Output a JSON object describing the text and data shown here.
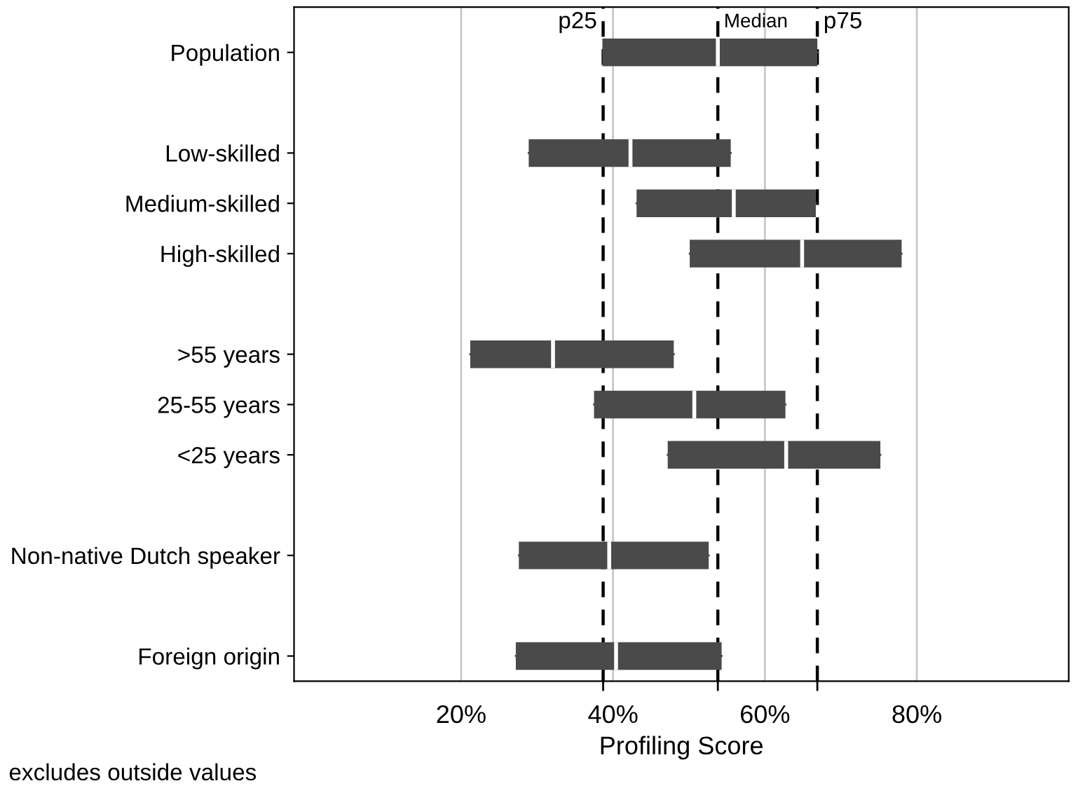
{
  "chart_data": {
    "type": "box",
    "orientation": "horizontal",
    "xlabel": "Profiling Score",
    "categories": [
      "Population",
      null,
      "Low-skilled",
      "Medium-skilled",
      "High-skilled",
      null,
      ">55 years",
      "25-55 years",
      "<25 years",
      null,
      "Non-native Dutch speaker",
      null,
      "Foreign origin"
    ],
    "color": "#4a4a4a",
    "boxes": [
      {
        "q1": 38.6,
        "median": 53.8,
        "q3": 66.9
      },
      null,
      {
        "q1": 28.9,
        "median": 42.3,
        "q3": 55.5
      },
      {
        "q1": 43.1,
        "median": 55.9,
        "q3": 66.7
      },
      {
        "q1": 50.1,
        "median": 64.9,
        "q3": 78.0
      },
      null,
      {
        "q1": 21.2,
        "median": 32.1,
        "q3": 48.0
      },
      {
        "q1": 37.5,
        "median": 50.7,
        "q3": 62.7
      },
      {
        "q1": 47.2,
        "median": 62.8,
        "q3": 75.2
      },
      null,
      {
        "q1": 27.6,
        "median": 39.5,
        "q3": 52.6
      },
      null,
      {
        "q1": 27.2,
        "median": 40.4,
        "q3": 54.3
      }
    ],
    "xlim": [
      -2,
      100
    ],
    "xticks": [
      {
        "value": 20,
        "label": "20%"
      },
      {
        "value": 40,
        "label": "40%"
      },
      {
        "value": 60,
        "label": "60%"
      },
      {
        "value": 80,
        "label": "80%"
      }
    ],
    "grid": "x",
    "ref_lines": [
      {
        "axis": "x",
        "value": 38.7,
        "label": "p25",
        "color": "#000000",
        "line_style": "dashed"
      },
      {
        "axis": "x",
        "value": 53.8,
        "label": "Median",
        "color": "#000000",
        "line_style": "dashed"
      },
      {
        "axis": "x",
        "value": 66.9,
        "label": "p75",
        "color": "#000000",
        "line_style": "dashed"
      }
    ],
    "annotations": [
      "excludes outside values"
    ]
  }
}
